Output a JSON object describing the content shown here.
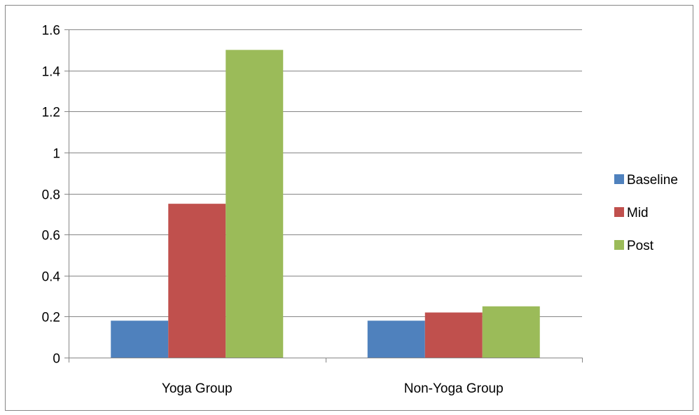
{
  "chart_data": {
    "type": "bar",
    "title": "",
    "xlabel": "",
    "ylabel": "",
    "categories": [
      "Yoga Group",
      "Non-Yoga Group"
    ],
    "series": [
      {
        "name": "Baseline",
        "values": [
          0.18,
          0.18
        ],
        "color": "#4F81BD"
      },
      {
        "name": "Mid",
        "values": [
          0.75,
          0.22
        ],
        "color": "#C0504D"
      },
      {
        "name": "Post",
        "values": [
          1.5,
          0.25
        ],
        "color": "#9BBB59"
      }
    ],
    "ylim": [
      0,
      1.6
    ],
    "yticks": [
      0,
      0.2,
      0.4,
      0.6,
      0.8,
      1,
      1.2,
      1.4,
      1.6
    ],
    "ytick_labels": [
      "0",
      "0.2",
      "0.4",
      "0.6",
      "0.8",
      "1",
      "1.2",
      "1.4",
      "1.6"
    ],
    "grid": true,
    "legend_position": "right"
  }
}
